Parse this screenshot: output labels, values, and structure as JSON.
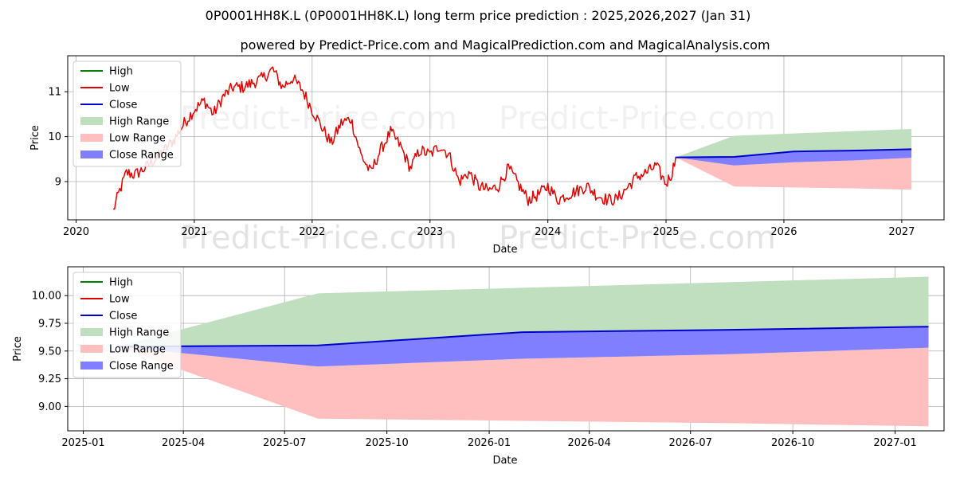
{
  "title": "0P0001HH8K.L (0P0001HH8K.L) long term price prediction : 2025,2026,2027 (Jan 31)",
  "subtitle": "powered by Predict-Price.com and MagicalPrediction.com and MagicalAnalysis.com",
  "watermark": "Predict-Price.com",
  "colors": {
    "high": "#008000",
    "low": "#e00000",
    "close": "#0000cc",
    "high_range": "#bfdfbf",
    "low_range": "#ffbfbf",
    "close_range": "#7f7fff",
    "grid": "#b0b0b0"
  },
  "chart_data": [
    {
      "type": "line",
      "xlabel": "Date",
      "ylabel": "Price",
      "xlim": [
        "2019-12-06",
        "2027-05-12"
      ],
      "ylim": [
        8.15,
        11.8
      ],
      "xticks": [
        {
          "label": "2020",
          "date": "2020-01-01"
        },
        {
          "label": "2021",
          "date": "2021-01-01"
        },
        {
          "label": "2022",
          "date": "2022-01-01"
        },
        {
          "label": "2023",
          "date": "2023-01-01"
        },
        {
          "label": "2024",
          "date": "2024-01-01"
        },
        {
          "label": "2025",
          "date": "2025-01-01"
        },
        {
          "label": "2026",
          "date": "2026-01-01"
        },
        {
          "label": "2027",
          "date": "2027-01-01"
        }
      ],
      "yticks": [
        9,
        10,
        11
      ],
      "grid": true,
      "legend_position": "top-left",
      "legend": [
        "High",
        "Low",
        "Close",
        "High Range",
        "Low Range",
        "Close Range"
      ],
      "history_low": [
        [
          "2020-04-25",
          8.35
        ],
        [
          "2020-05-15",
          8.8
        ],
        [
          "2020-06-05",
          9.2
        ],
        [
          "2020-07-01",
          9.15
        ],
        [
          "2020-08-01",
          9.3
        ],
        [
          "2020-09-01",
          9.5
        ],
        [
          "2020-10-01",
          9.7
        ],
        [
          "2020-11-01",
          9.95
        ],
        [
          "2020-12-01",
          10.3
        ],
        [
          "2021-01-01",
          10.6
        ],
        [
          "2021-02-01",
          10.8
        ],
        [
          "2021-03-01",
          10.5
        ],
        [
          "2021-04-01",
          10.9
        ],
        [
          "2021-05-01",
          11.1
        ],
        [
          "2021-06-01",
          11.1
        ],
        [
          "2021-07-01",
          11.2
        ],
        [
          "2021-08-01",
          11.3
        ],
        [
          "2021-09-01",
          11.5
        ],
        [
          "2021-10-01",
          11.1
        ],
        [
          "2021-11-01",
          11.3
        ],
        [
          "2021-12-01",
          11.05
        ],
        [
          "2022-01-01",
          10.6
        ],
        [
          "2022-02-01",
          10.2
        ],
        [
          "2022-03-01",
          9.85
        ],
        [
          "2022-04-01",
          10.3
        ],
        [
          "2022-05-01",
          10.4
        ],
        [
          "2022-06-01",
          9.6
        ],
        [
          "2022-07-01",
          9.2
        ],
        [
          "2022-08-01",
          9.7
        ],
        [
          "2022-09-01",
          10.1
        ],
        [
          "2022-10-01",
          9.8
        ],
        [
          "2022-11-01",
          9.3
        ],
        [
          "2022-12-01",
          9.7
        ],
        [
          "2023-01-01",
          9.6
        ],
        [
          "2023-02-01",
          9.8
        ],
        [
          "2023-03-01",
          9.6
        ],
        [
          "2023-04-01",
          9.0
        ],
        [
          "2023-05-01",
          9.2
        ],
        [
          "2023-06-01",
          8.9
        ],
        [
          "2023-07-01",
          8.8
        ],
        [
          "2023-08-01",
          8.9
        ],
        [
          "2023-09-01",
          9.3
        ],
        [
          "2023-10-01",
          8.95
        ],
        [
          "2023-11-01",
          8.6
        ],
        [
          "2023-12-01",
          8.7
        ],
        [
          "2024-01-01",
          8.9
        ],
        [
          "2024-02-01",
          8.6
        ],
        [
          "2024-03-01",
          8.7
        ],
        [
          "2024-04-01",
          8.8
        ],
        [
          "2024-05-01",
          8.9
        ],
        [
          "2024-06-01",
          8.7
        ],
        [
          "2024-07-01",
          8.6
        ],
        [
          "2024-08-01",
          8.6
        ],
        [
          "2024-09-01",
          8.85
        ],
        [
          "2024-10-01",
          9.1
        ],
        [
          "2024-11-01",
          9.2
        ],
        [
          "2024-12-01",
          9.35
        ],
        [
          "2025-01-01",
          8.95
        ],
        [
          "2025-01-20",
          9.2
        ],
        [
          "2025-01-31",
          9.55
        ]
      ],
      "forecast_dates": [
        "2025-01-31",
        "2025-07-31",
        "2026-01-31",
        "2026-07-31",
        "2027-01-31"
      ],
      "forecast": {
        "close": [
          9.54,
          9.55,
          9.67,
          9.69,
          9.72
        ],
        "high_range": {
          "upper": [
            9.54,
            10.02,
            10.07,
            10.12,
            10.17
          ],
          "lower": [
            9.54,
            9.55,
            9.67,
            9.69,
            9.72
          ]
        },
        "close_range": {
          "upper": [
            9.54,
            9.55,
            9.67,
            9.69,
            9.72
          ],
          "lower": [
            9.54,
            9.36,
            9.43,
            9.47,
            9.53
          ]
        },
        "low_range": {
          "upper": [
            9.54,
            9.36,
            9.43,
            9.47,
            9.53
          ],
          "lower": [
            9.54,
            8.89,
            8.87,
            8.85,
            8.82
          ]
        }
      }
    },
    {
      "type": "area",
      "xlabel": "Date",
      "ylabel": "Price",
      "xlim": [
        "2024-12-18",
        "2027-02-14"
      ],
      "ylim": [
        8.78,
        10.26
      ],
      "xticks": [
        {
          "label": "2025-01",
          "date": "2025-01-01"
        },
        {
          "label": "2025-04",
          "date": "2025-04-01"
        },
        {
          "label": "2025-07",
          "date": "2025-07-01"
        },
        {
          "label": "2025-10",
          "date": "2025-10-01"
        },
        {
          "label": "2026-01",
          "date": "2026-01-01"
        },
        {
          "label": "2026-04",
          "date": "2026-04-01"
        },
        {
          "label": "2026-07",
          "date": "2026-07-01"
        },
        {
          "label": "2026-10",
          "date": "2026-10-01"
        },
        {
          "label": "2027-01",
          "date": "2027-01-01"
        }
      ],
      "yticks": [
        "9.00",
        "9.25",
        "9.50",
        "9.75",
        "10.00"
      ],
      "grid": true,
      "legend_position": "top-left",
      "legend": [
        "High",
        "Low",
        "Close",
        "High Range",
        "Low Range",
        "Close Range"
      ],
      "forecast_dates": [
        "2025-01-31",
        "2025-07-31",
        "2026-01-31",
        "2026-07-31",
        "2027-01-31"
      ],
      "forecast": {
        "close": [
          9.54,
          9.55,
          9.67,
          9.69,
          9.72
        ],
        "high_range": {
          "upper": [
            9.54,
            10.02,
            10.07,
            10.12,
            10.17
          ],
          "lower": [
            9.54,
            9.55,
            9.67,
            9.69,
            9.72
          ]
        },
        "close_range": {
          "upper": [
            9.54,
            9.55,
            9.67,
            9.69,
            9.72
          ],
          "lower": [
            9.54,
            9.36,
            9.43,
            9.47,
            9.53
          ]
        },
        "low_range": {
          "upper": [
            9.54,
            9.36,
            9.43,
            9.47,
            9.53
          ],
          "lower": [
            9.54,
            8.89,
            8.87,
            8.85,
            8.82
          ]
        }
      }
    }
  ]
}
